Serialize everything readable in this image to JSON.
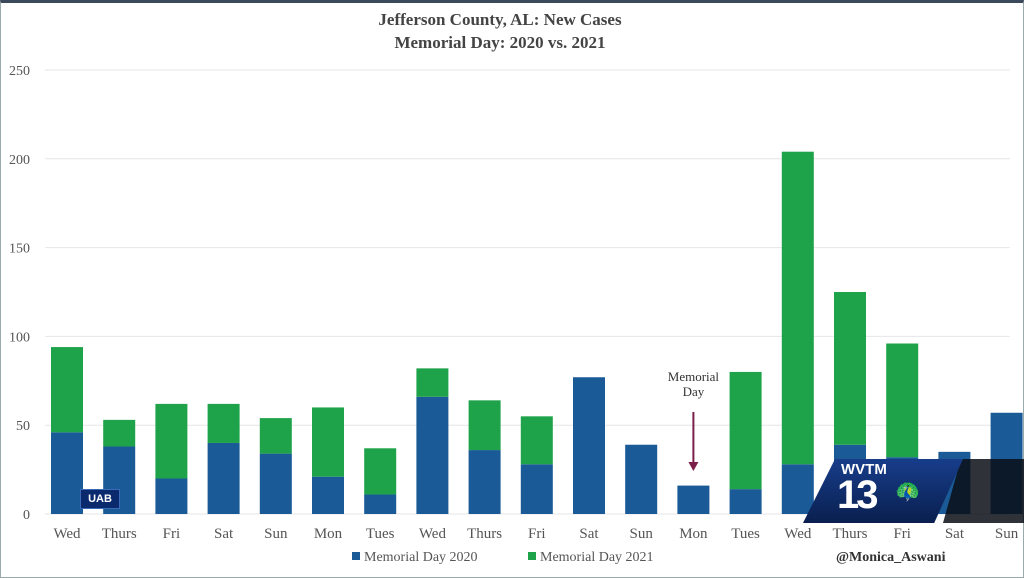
{
  "chart_data": {
    "type": "bar",
    "stacked": true,
    "title": "Jefferson County, AL: New Cases",
    "subtitle": "Memorial Day: 2020 vs. 2021",
    "categories": [
      "Wed",
      "Thurs",
      "Fri",
      "Sat",
      "Sun",
      "Mon",
      "Tues",
      "Wed",
      "Thurs",
      "Fri",
      "Sat",
      "Sun",
      "Mon",
      "Tues",
      "Wed",
      "Thurs",
      "Fri",
      "Sat",
      "Sun"
    ],
    "series": [
      {
        "name": "Memorial Day 2020",
        "color": "#1a5a96",
        "values": [
          46,
          38,
          20,
          40,
          34,
          21,
          11,
          66,
          36,
          28,
          77,
          39,
          16,
          14,
          28,
          39,
          32,
          35,
          57
        ]
      },
      {
        "name": "Memorial Day 2021",
        "color": "#1fa34a",
        "values": [
          48,
          15,
          42,
          22,
          20,
          39,
          26,
          16,
          28,
          27,
          0,
          0,
          0,
          66,
          176,
          86,
          64,
          0,
          0
        ]
      }
    ],
    "ylim": [
      0,
      250
    ],
    "yticks": [
      0,
      50,
      100,
      150,
      200,
      250
    ],
    "grid": true,
    "legend": "bottom",
    "annotation": {
      "text_line1": "Memorial",
      "text_line2": "Day",
      "category_index": 12,
      "color": "#7a1e4a"
    }
  },
  "overlay": {
    "badge": "UAB",
    "station_call": "WVTM",
    "station_number": "13",
    "handle": "@Monica_Aswani"
  }
}
